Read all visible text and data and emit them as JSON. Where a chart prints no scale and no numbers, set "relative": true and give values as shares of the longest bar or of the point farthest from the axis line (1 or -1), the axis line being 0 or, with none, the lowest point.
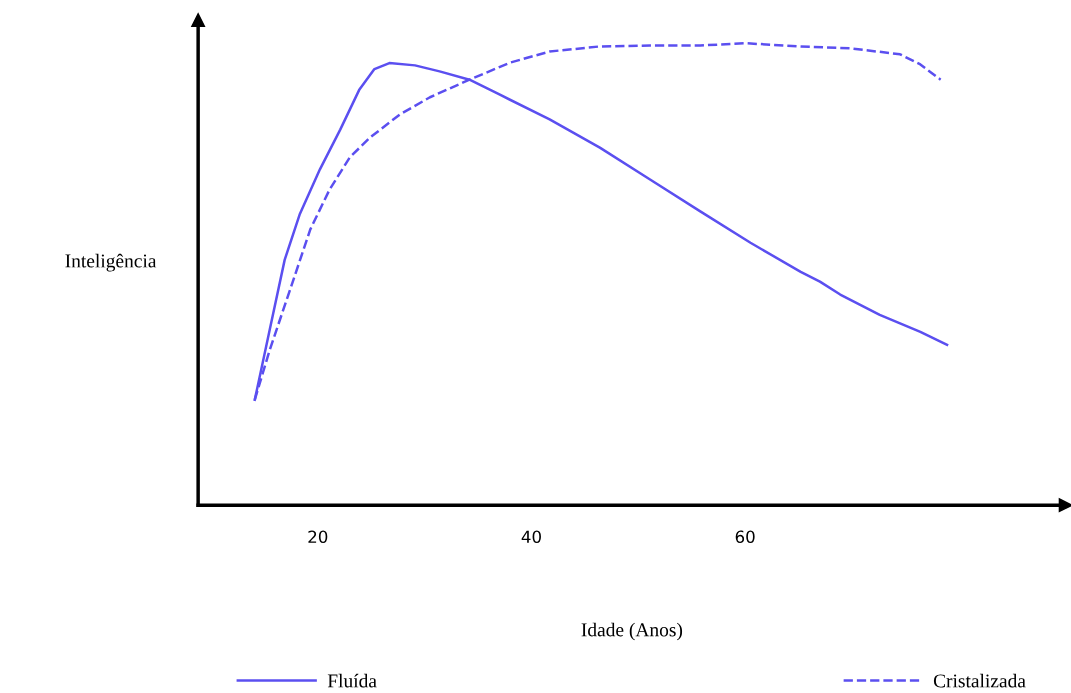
{
  "chart_data": {
    "type": "line",
    "relative": true,
    "xlabel": "Idade (Anos)",
    "ylabel": "Inteligência",
    "xlim": [
      8.8,
      90
    ],
    "xticks": [
      20,
      40,
      60
    ],
    "grid": false,
    "legend": "bottom",
    "marker": "none",
    "series": [
      {
        "name": "Fluída",
        "color": "#5b4ff0",
        "line_style": "solid",
        "x": [
          14.1,
          15.5,
          16.9,
          18.3,
          20.2,
          22.1,
          23.9,
          25.3,
          26.7,
          29.1,
          31.4,
          34.2,
          37.0,
          41.7,
          46.4,
          51.1,
          55.8,
          60.5,
          65.2,
          67.0,
          68.9,
          72.6,
          76.4,
          78.9
        ],
        "values": [
          0.228,
          0.38,
          0.531,
          0.629,
          0.727,
          0.813,
          0.9,
          0.944,
          0.957,
          0.952,
          0.939,
          0.921,
          0.889,
          0.835,
          0.774,
          0.705,
          0.636,
          0.568,
          0.505,
          0.484,
          0.456,
          0.412,
          0.375,
          0.347
        ]
      },
      {
        "name": "Cristalizada",
        "color": "#5b4ff0",
        "line_style": "dashed",
        "x": [
          14.1,
          15.5,
          17.4,
          19.3,
          21.1,
          23.0,
          24.9,
          27.7,
          30.5,
          34.2,
          38.0,
          41.7,
          46.4,
          51.1,
          55.8,
          60.0,
          65.2,
          69.8,
          74.5,
          76.4,
          78.3
        ],
        "values": [
          0.228,
          0.336,
          0.466,
          0.597,
          0.683,
          0.753,
          0.796,
          0.846,
          0.883,
          0.921,
          0.958,
          0.982,
          0.993,
          0.995,
          0.995,
          1.0,
          0.993,
          0.989,
          0.976,
          0.954,
          0.921
        ]
      }
    ]
  }
}
